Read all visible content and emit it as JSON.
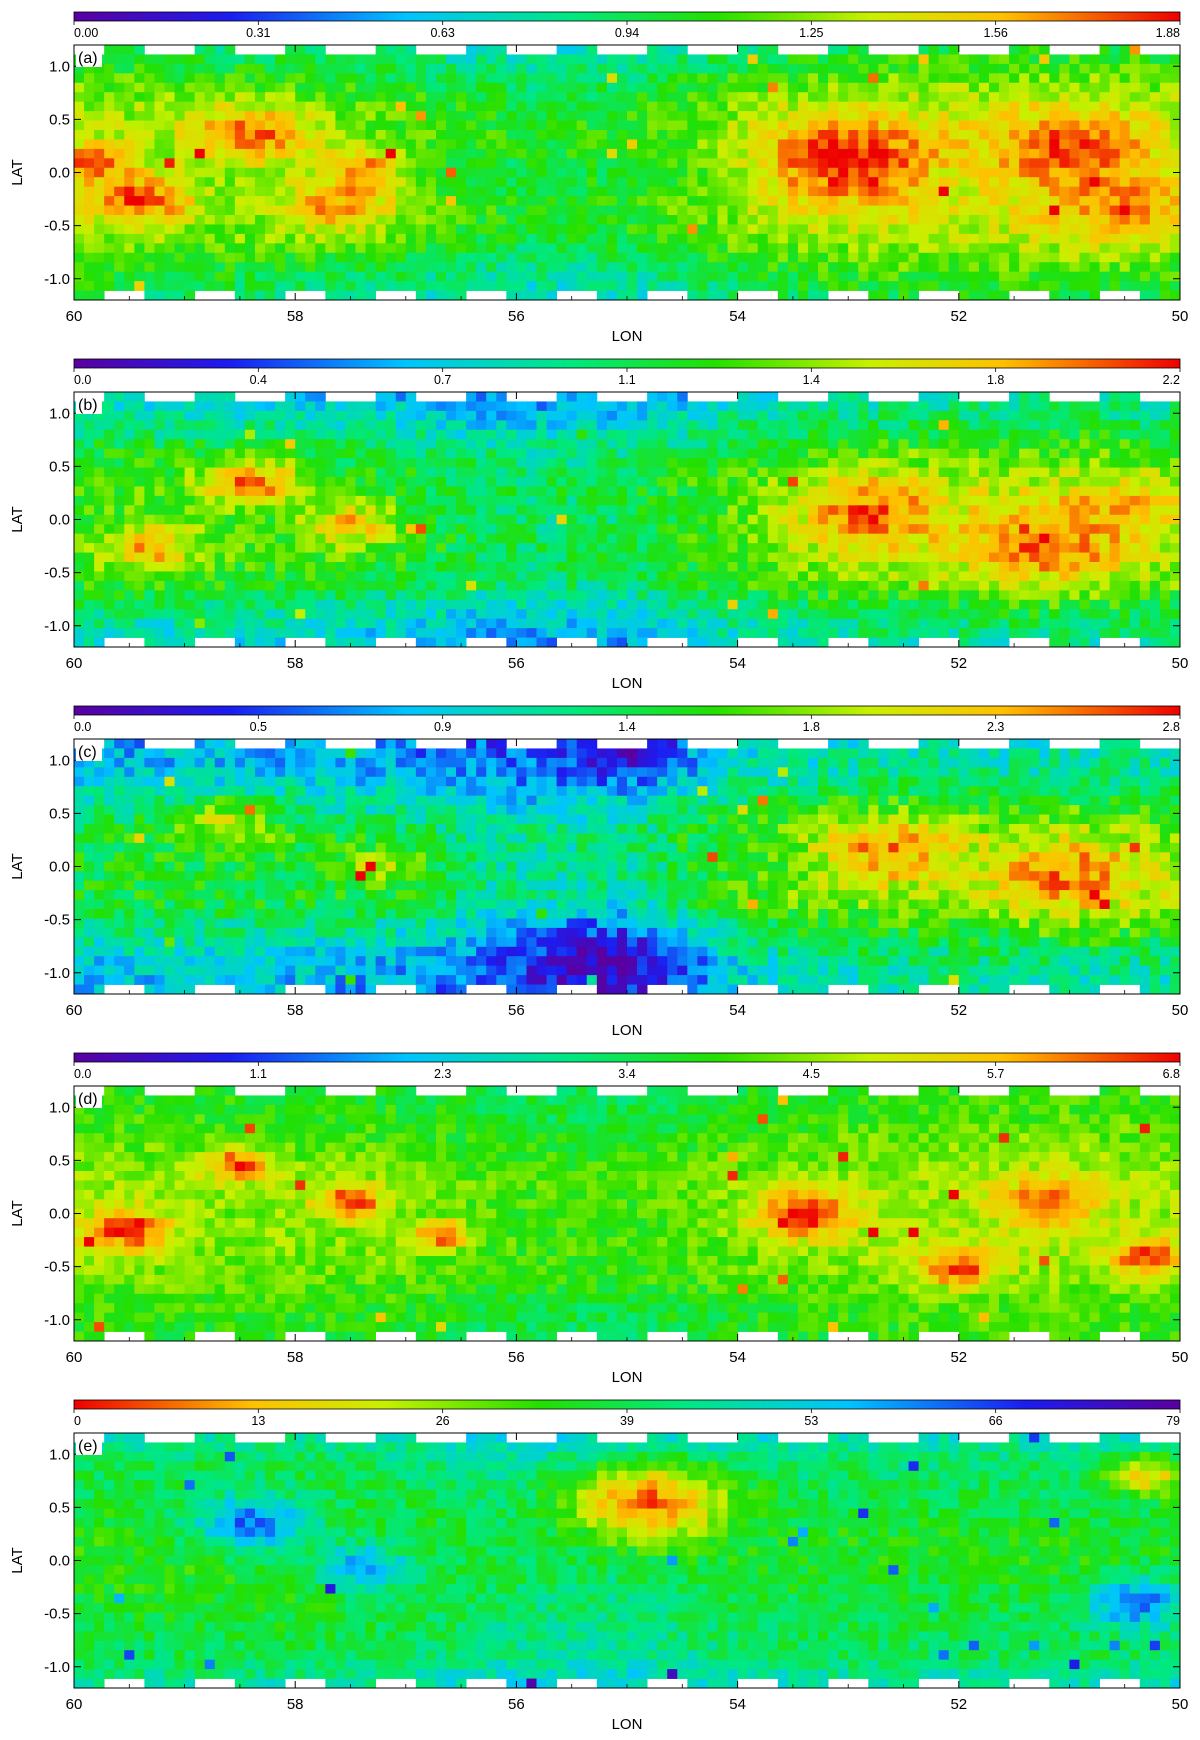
{
  "chart_data": [
    {
      "type": "heatmap",
      "panel_label": "(a)",
      "xlabel": "LON",
      "ylabel": "LAT",
      "xlim": [
        60,
        50
      ],
      "ylim": [
        -1.2,
        1.2
      ],
      "x_ticks": [
        {
          "value": 60,
          "label": "60"
        },
        {
          "value": 58,
          "label": "58"
        },
        {
          "value": 56,
          "label": "56"
        },
        {
          "value": 54,
          "label": "54"
        },
        {
          "value": 52,
          "label": "52"
        },
        {
          "value": 50,
          "label": "50"
        }
      ],
      "y_ticks": [
        {
          "value": 1.0,
          "label": "1.0"
        },
        {
          "value": 0.5,
          "label": "0.5"
        },
        {
          "value": 0.0,
          "label": "0.0"
        },
        {
          "value": -0.5,
          "label": "-0.5"
        },
        {
          "value": -1.0,
          "label": "-1.0"
        }
      ],
      "colorbar": {
        "colormap": "rainbow",
        "labels": [
          "0.00",
          "0.31",
          "0.63",
          "0.94",
          "1.25",
          "1.56",
          "1.88"
        ],
        "min": 0.0,
        "max": 1.88
      },
      "base_level": 0.5,
      "field": {
        "lat_profile": [
          0.28,
          0.55,
          0.75,
          0.78,
          0.66,
          0.78,
          0.72,
          0.5,
          0.28
        ],
        "lon_profile": [
          0.72,
          0.65,
          0.6,
          0.5,
          0.36,
          0.4,
          0.62,
          0.74,
          0.78,
          0.8,
          0.76
        ],
        "noise": 0.08
      },
      "hotspots": [
        {
          "lon": 59.8,
          "lat": 0.1,
          "value": 0.95,
          "spread": 0.4
        },
        {
          "lon": 59.4,
          "lat": -0.25,
          "value": 0.95,
          "spread": 0.5
        },
        {
          "lon": 58.4,
          "lat": 0.35,
          "value": 0.92,
          "spread": 0.6
        },
        {
          "lon": 57.6,
          "lat": -0.3,
          "value": 0.88,
          "spread": 0.6
        },
        {
          "lon": 57.4,
          "lat": 0.05,
          "value": 0.9,
          "spread": 0.4
        },
        {
          "lon": 53.0,
          "lat": 0.1,
          "value": 1.0,
          "spread": 0.9
        },
        {
          "lon": 51.0,
          "lat": 0.2,
          "value": 0.96,
          "spread": 0.8
        },
        {
          "lon": 50.6,
          "lat": -0.3,
          "value": 0.9,
          "spread": 0.7
        }
      ]
    },
    {
      "type": "heatmap",
      "panel_label": "(b)",
      "xlabel": "LON",
      "ylabel": "LAT",
      "xlim": [
        60,
        50
      ],
      "ylim": [
        -1.2,
        1.2
      ],
      "x_ticks": [
        {
          "value": 60,
          "label": "60"
        },
        {
          "value": 58,
          "label": "58"
        },
        {
          "value": 56,
          "label": "56"
        },
        {
          "value": 54,
          "label": "54"
        },
        {
          "value": 52,
          "label": "52"
        },
        {
          "value": 50,
          "label": "50"
        }
      ],
      "y_ticks": [
        {
          "value": 1.0,
          "label": "1.0"
        },
        {
          "value": 0.5,
          "label": "0.5"
        },
        {
          "value": 0.0,
          "label": "0.0"
        },
        {
          "value": -0.5,
          "label": "-0.5"
        },
        {
          "value": -1.0,
          "label": "-1.0"
        }
      ],
      "colorbar": {
        "colormap": "rainbow",
        "labels": [
          "0.0",
          "0.4",
          "0.7",
          "1.1",
          "1.4",
          "1.8",
          "2.2"
        ],
        "min": 0.0,
        "max": 2.2
      },
      "base_level": 0.4,
      "field": {
        "lat_profile": [
          0.05,
          0.3,
          0.6,
          0.72,
          0.65,
          0.72,
          0.62,
          0.3,
          0.1
        ],
        "lon_profile": [
          0.6,
          0.58,
          0.55,
          0.45,
          0.32,
          0.36,
          0.62,
          0.72,
          0.74,
          0.76,
          0.72
        ],
        "noise": 0.09
      },
      "hotspots": [
        {
          "lon": 58.4,
          "lat": 0.35,
          "value": 0.9,
          "spread": 0.5
        },
        {
          "lon": 59.3,
          "lat": -0.25,
          "value": 0.85,
          "spread": 0.5
        },
        {
          "lon": 57.5,
          "lat": -0.05,
          "value": 0.82,
          "spread": 0.5
        },
        {
          "lon": 52.8,
          "lat": 0.05,
          "value": 0.92,
          "spread": 0.8
        },
        {
          "lon": 51.2,
          "lat": -0.2,
          "value": 0.92,
          "spread": 0.9
        },
        {
          "lon": 50.5,
          "lat": 0.1,
          "value": 0.85,
          "spread": 0.6
        }
      ]
    },
    {
      "type": "heatmap",
      "panel_label": "(c)",
      "xlabel": "LON",
      "ylabel": "LAT",
      "xlim": [
        60,
        50
      ],
      "ylim": [
        -1.2,
        1.2
      ],
      "x_ticks": [
        {
          "value": 60,
          "label": "60"
        },
        {
          "value": 58,
          "label": "58"
        },
        {
          "value": 56,
          "label": "56"
        },
        {
          "value": 54,
          "label": "54"
        },
        {
          "value": 52,
          "label": "52"
        },
        {
          "value": 50,
          "label": "50"
        }
      ],
      "y_ticks": [
        {
          "value": 1.0,
          "label": "1.0"
        },
        {
          "value": 0.5,
          "label": "0.5"
        },
        {
          "value": 0.0,
          "label": "0.0"
        },
        {
          "value": -0.5,
          "label": "-0.5"
        },
        {
          "value": -1.0,
          "label": "-1.0"
        }
      ],
      "colorbar": {
        "colormap": "rainbow",
        "labels": [
          "0.0",
          "0.5",
          "0.9",
          "1.4",
          "1.8",
          "2.3",
          "2.8"
        ],
        "min": 0.0,
        "max": 2.8
      },
      "base_level": 0.35,
      "field": {
        "lat_profile": [
          0.0,
          0.12,
          0.42,
          0.66,
          0.62,
          0.66,
          0.42,
          0.15,
          0.05
        ],
        "lon_profile": [
          0.5,
          0.52,
          0.5,
          0.4,
          0.25,
          0.3,
          0.66,
          0.78,
          0.8,
          0.8,
          0.78
        ],
        "noise": 0.1
      },
      "hotspots": [
        {
          "lon": 52.6,
          "lat": 0.15,
          "value": 0.88,
          "spread": 0.7
        },
        {
          "lon": 51.0,
          "lat": -0.1,
          "value": 0.9,
          "spread": 0.8
        },
        {
          "lon": 58.6,
          "lat": 0.4,
          "value": 0.72,
          "spread": 0.5
        },
        {
          "lon": 57.2,
          "lat": 0.0,
          "value": 0.7,
          "spread": 0.5
        },
        {
          "lon": 55.0,
          "lat": 1.05,
          "value": 0.08,
          "spread": 0.5
        },
        {
          "lon": 55.2,
          "lat": -0.9,
          "value": 0.05,
          "spread": 0.9
        }
      ]
    },
    {
      "type": "heatmap",
      "panel_label": "(d)",
      "xlabel": "LON",
      "ylabel": "LAT",
      "xlim": [
        60,
        50
      ],
      "ylim": [
        -1.2,
        1.2
      ],
      "x_ticks": [
        {
          "value": 60,
          "label": "60"
        },
        {
          "value": 58,
          "label": "58"
        },
        {
          "value": 56,
          "label": "56"
        },
        {
          "value": 54,
          "label": "54"
        },
        {
          "value": 52,
          "label": "52"
        },
        {
          "value": 50,
          "label": "50"
        }
      ],
      "y_ticks": [
        {
          "value": 1.0,
          "label": "1.0"
        },
        {
          "value": 0.5,
          "label": "0.5"
        },
        {
          "value": 0.0,
          "label": "0.0"
        },
        {
          "value": -0.5,
          "label": "-0.5"
        },
        {
          "value": -1.0,
          "label": "-1.0"
        }
      ],
      "colorbar": {
        "colormap": "rainbow",
        "labels": [
          "0.0",
          "1.1",
          "2.3",
          "3.4",
          "4.5",
          "5.7",
          "6.8"
        ],
        "min": 0.0,
        "max": 6.8
      },
      "base_level": 0.55,
      "field": {
        "lat_profile": [
          0.45,
          0.52,
          0.64,
          0.74,
          0.7,
          0.72,
          0.66,
          0.52,
          0.45
        ],
        "lon_profile": [
          0.7,
          0.66,
          0.65,
          0.62,
          0.5,
          0.5,
          0.6,
          0.68,
          0.72,
          0.74,
          0.7
        ],
        "noise": 0.07
      },
      "hotspots": [
        {
          "lon": 59.5,
          "lat": -0.15,
          "value": 1.0,
          "spread": 0.4
        },
        {
          "lon": 58.5,
          "lat": 0.45,
          "value": 1.0,
          "spread": 0.3
        },
        {
          "lon": 57.5,
          "lat": 0.1,
          "value": 0.98,
          "spread": 0.35
        },
        {
          "lon": 56.7,
          "lat": -0.2,
          "value": 0.95,
          "spread": 0.3
        },
        {
          "lon": 53.4,
          "lat": 0.0,
          "value": 1.0,
          "spread": 0.5
        },
        {
          "lon": 52.0,
          "lat": -0.5,
          "value": 0.95,
          "spread": 0.4
        },
        {
          "lon": 50.3,
          "lat": -0.4,
          "value": 0.98,
          "spread": 0.35
        },
        {
          "lon": 51.2,
          "lat": 0.1,
          "value": 0.92,
          "spread": 0.5
        }
      ]
    },
    {
      "type": "heatmap",
      "panel_label": "(e)",
      "xlabel": "LON",
      "ylabel": "LAT",
      "xlim": [
        60,
        50
      ],
      "ylim": [
        -1.2,
        1.2
      ],
      "x_ticks": [
        {
          "value": 60,
          "label": "60"
        },
        {
          "value": 58,
          "label": "58"
        },
        {
          "value": 56,
          "label": "56"
        },
        {
          "value": 54,
          "label": "54"
        },
        {
          "value": 52,
          "label": "52"
        },
        {
          "value": 50,
          "label": "50"
        }
      ],
      "y_ticks": [
        {
          "value": 1.0,
          "label": "1.0"
        },
        {
          "value": 0.5,
          "label": "0.5"
        },
        {
          "value": 0.0,
          "label": "0.0"
        },
        {
          "value": -0.5,
          "label": "-0.5"
        },
        {
          "value": -1.0,
          "label": "-1.0"
        }
      ],
      "colorbar": {
        "colormap": "rainbow_reversed",
        "labels": [
          "0",
          "13",
          "26",
          "39",
          "53",
          "66",
          "79"
        ],
        "min": 0,
        "max": 79
      },
      "base_level": 0.55,
      "field": {
        "lat_profile": [
          0.8,
          0.58,
          0.5,
          0.42,
          0.4,
          0.44,
          0.5,
          0.56,
          0.8
        ],
        "lon_profile": [
          0.42,
          0.4,
          0.4,
          0.45,
          0.58,
          0.62,
          0.5,
          0.45,
          0.46,
          0.44,
          0.48
        ],
        "noise": 0.07
      },
      "hotspots": [
        {
          "lon": 54.8,
          "lat": 0.55,
          "value": 0.08,
          "spread": 0.8
        },
        {
          "lon": 50.3,
          "lat": 0.8,
          "value": 0.2,
          "spread": 0.4
        },
        {
          "lon": 58.4,
          "lat": 0.35,
          "value": 0.78,
          "spread": 0.6
        },
        {
          "lon": 50.4,
          "lat": -0.4,
          "value": 0.78,
          "spread": 0.5
        },
        {
          "lon": 57.4,
          "lat": -0.05,
          "value": 0.72,
          "spread": 0.5
        }
      ]
    }
  ]
}
